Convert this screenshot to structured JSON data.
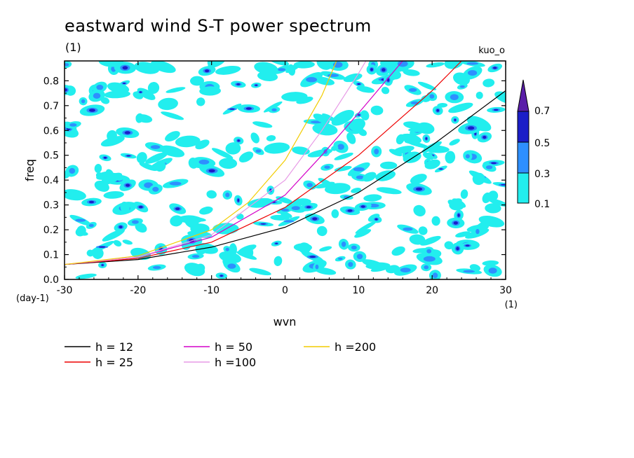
{
  "chart_data": {
    "type": "heatmap",
    "title": "eastward wind S-T power spectrum",
    "subtitle": "(1)",
    "run_label": "kuo_o",
    "xlabel": "wvn",
    "ylabel": "freq",
    "x_unit": "(1)",
    "y_unit": "(day-1)",
    "xlim": [
      -30,
      30
    ],
    "ylim": [
      0,
      0.88
    ],
    "xticks": [
      "-30",
      "-20",
      "-10",
      "0",
      "10",
      "20",
      "30"
    ],
    "yticks": [
      "0.0",
      "0.1",
      "0.2",
      "0.3",
      "0.4",
      "0.5",
      "0.6",
      "0.7",
      "0.8"
    ],
    "colorbar": {
      "levels": [
        "0.1",
        "0.3",
        "0.5",
        "0.7"
      ],
      "colors": [
        "#22eeee",
        "#2e8fff",
        "#1b1ec8",
        "#5a1ea8"
      ],
      "extend": "max"
    },
    "dispersion_curves": [
      {
        "name": "h = 12",
        "color": "#000000",
        "x": [
          -30,
          -20,
          -10,
          0,
          10,
          20,
          30
        ],
        "y": [
          0.06,
          0.08,
          0.13,
          0.21,
          0.35,
          0.54,
          0.76
        ]
      },
      {
        "name": "h = 25",
        "color": "#ee0000",
        "x": [
          -30,
          -20,
          -10,
          0,
          10,
          20,
          24
        ],
        "y": [
          0.06,
          0.085,
          0.15,
          0.29,
          0.5,
          0.76,
          0.88
        ]
      },
      {
        "name": "h = 50",
        "color": "#d400c8",
        "x": [
          -30,
          -20,
          -10,
          0,
          5,
          10,
          16
        ],
        "y": [
          0.06,
          0.09,
          0.17,
          0.34,
          0.5,
          0.67,
          0.88
        ]
      },
      {
        "name": "h =100",
        "color": "#e79ae6",
        "x": [
          -30,
          -20,
          -10,
          0,
          5,
          10,
          11
        ],
        "y": [
          0.06,
          0.09,
          0.18,
          0.4,
          0.6,
          0.83,
          0.88
        ]
      },
      {
        "name": "h =200",
        "color": "#f2cc00",
        "x": [
          -30,
          -20,
          -10,
          -5,
          0,
          5,
          7
        ],
        "y": [
          0.06,
          0.095,
          0.2,
          0.31,
          0.48,
          0.74,
          0.88
        ]
      }
    ]
  },
  "legend": {
    "items": [
      {
        "label": "h = 12",
        "color": "#000000"
      },
      {
        "label": "h = 25",
        "color": "#ee0000"
      },
      {
        "label": "h = 50",
        "color": "#d400c8"
      },
      {
        "label": "h =100",
        "color": "#e79ae6"
      },
      {
        "label": "h =200",
        "color": "#f2cc00"
      }
    ]
  }
}
